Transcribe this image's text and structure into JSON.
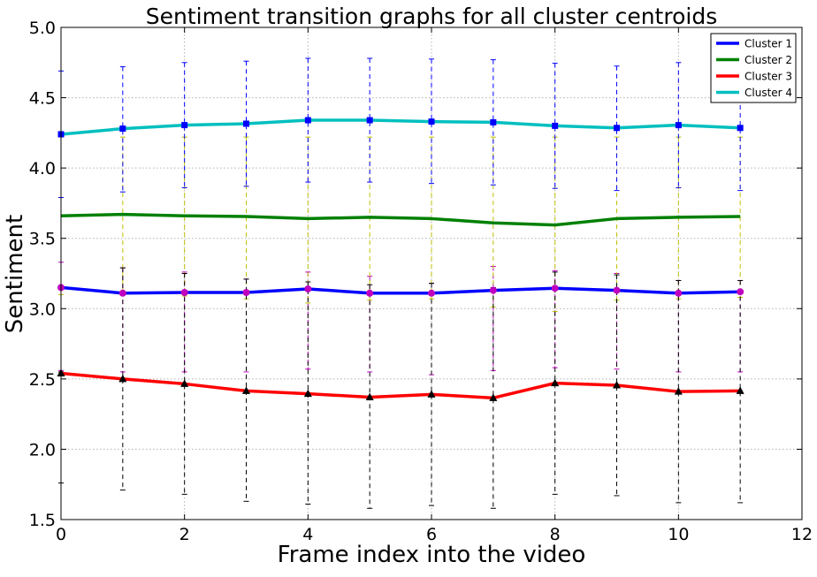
{
  "chart_data": {
    "type": "line",
    "title": "Sentiment transition graphs for all cluster centroids",
    "xlabel": "Frame index into the video",
    "ylabel": "Sentiment",
    "xlim": [
      0,
      12
    ],
    "ylim": [
      1.5,
      5.0
    ],
    "xticks": [
      "0",
      "2",
      "4",
      "6",
      "8",
      "10",
      "12"
    ],
    "yticks": [
      "1.5",
      "2.0",
      "2.5",
      "3.0",
      "3.5",
      "4.0",
      "4.5",
      "5.0"
    ],
    "xtick_values": [
      0,
      2,
      4,
      6,
      8,
      10,
      12
    ],
    "ytick_values": [
      1.5,
      2.0,
      2.5,
      3.0,
      3.5,
      4.0,
      4.5,
      5.0
    ],
    "grid": true,
    "legend_position": "top-right",
    "x": [
      0,
      1,
      2,
      3,
      4,
      5,
      6,
      7,
      8,
      9,
      10,
      11
    ],
    "series": [
      {
        "name": "Cluster 1",
        "color": "#0000ff",
        "marker": "circle",
        "marker_color": "#bf00bf",
        "errorbar_color": "#bf00bf",
        "values": [
          3.15,
          3.11,
          3.115,
          3.115,
          3.14,
          3.11,
          3.11,
          3.13,
          3.145,
          3.13,
          3.11,
          3.12
        ],
        "err_upper": [
          3.33,
          3.29,
          3.26,
          3.21,
          3.26,
          3.23,
          3.18,
          3.3,
          3.27,
          3.25,
          3.2,
          3.2
        ],
        "err_lower": [
          2.56,
          2.55,
          2.55,
          2.55,
          2.57,
          2.55,
          2.53,
          2.56,
          2.58,
          2.57,
          2.55,
          2.55
        ]
      },
      {
        "name": "Cluster 2",
        "color": "#008000",
        "marker": "none",
        "errorbar_color": "#bfbf00",
        "values": [
          3.66,
          3.67,
          3.66,
          3.655,
          3.64,
          3.65,
          3.64,
          3.61,
          3.595,
          3.64,
          3.65,
          3.655
        ],
        "err_upper": [
          4.22,
          4.22,
          4.22,
          4.22,
          4.22,
          4.22,
          4.22,
          4.22,
          4.22,
          4.22,
          4.22,
          4.22
        ],
        "err_lower": [
          3.1,
          3.1,
          3.09,
          3.07,
          3.04,
          3.06,
          3.07,
          3.01,
          2.98,
          3.06,
          3.07,
          3.08
        ]
      },
      {
        "name": "Cluster 3",
        "color": "#ff0000",
        "marker": "triangle",
        "marker_color": "#000000",
        "errorbar_color": "#000000",
        "values": [
          2.54,
          2.5,
          2.465,
          2.415,
          2.395,
          2.37,
          2.39,
          2.365,
          2.47,
          2.455,
          2.41,
          2.415
        ],
        "err_upper": [
          2.55,
          3.29,
          3.25,
          3.21,
          3.19,
          3.17,
          3.18,
          3.15,
          3.26,
          3.24,
          3.2,
          3.2
        ],
        "err_lower": [
          1.76,
          1.71,
          1.68,
          1.63,
          1.61,
          1.58,
          1.6,
          1.58,
          1.68,
          1.67,
          1.62,
          1.62
        ]
      },
      {
        "name": "Cluster 4",
        "color": "#00bfbf",
        "marker": "square",
        "marker_color": "#0000ff",
        "errorbar_color": "#0000ff",
        "values": [
          4.24,
          4.28,
          4.305,
          4.315,
          4.34,
          4.34,
          4.33,
          4.325,
          4.3,
          4.285,
          4.305,
          4.285
        ],
        "err_upper": [
          4.69,
          4.72,
          4.75,
          4.76,
          4.78,
          4.78,
          4.775,
          4.77,
          4.745,
          4.725,
          4.75,
          4.73
        ],
        "err_lower": [
          3.79,
          3.83,
          3.86,
          3.87,
          3.9,
          3.9,
          3.89,
          3.88,
          3.855,
          3.84,
          3.86,
          3.84
        ]
      }
    ]
  }
}
